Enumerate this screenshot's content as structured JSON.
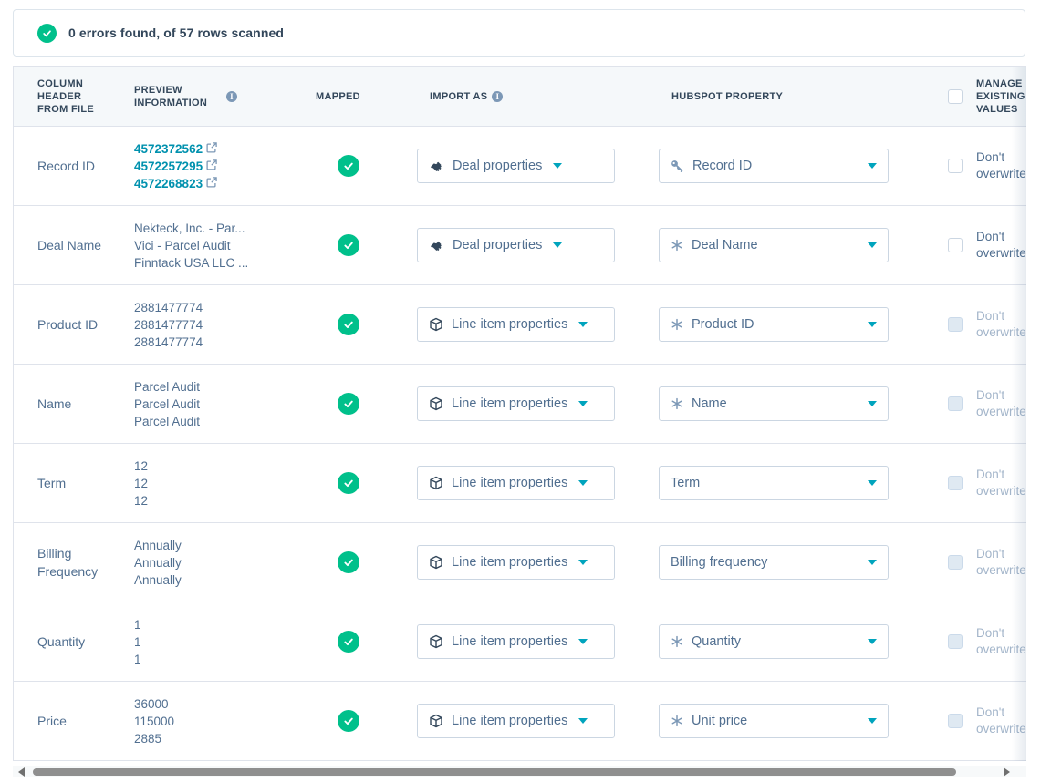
{
  "banner": {
    "text": "0 errors found, of 57 rows scanned"
  },
  "colors": {
    "success_green": "#00c08b",
    "accent_teal": "#00a4bd",
    "link_teal": "#0091ae",
    "header_bg": "#f5f8fa",
    "row_border": "#dfe3eb",
    "control_border": "#cbd6e2",
    "text_dark": "#33475b",
    "text_medium": "#516f90",
    "text_disabled": "#a3b5ca"
  },
  "icons": {
    "success-check-icon": "check in green circle",
    "info-icon": "i",
    "handshake-icon": "handshake",
    "cube-icon": "package cube",
    "key-icon": "key",
    "asterisk-icon": "asterisk",
    "external-link-icon": "arrow out of box",
    "chevron-down-icon": "caret down",
    "scroll-left-icon": "left triangle",
    "scroll-right-icon": "right triangle"
  },
  "table": {
    "headers": {
      "column_header": "COLUMN HEADER FROM FILE",
      "preview": "PREVIEW INFORMATION",
      "mapped": "MAPPED",
      "import_as": "IMPORT AS",
      "hubspot_property": "HUBSPOT PROPERTY",
      "manage_existing": "MANAGE EXISTING VALUES"
    },
    "dont_overwrite_label": "Don't overwrite",
    "rows": [
      {
        "column_header": "Record ID",
        "preview": [
          "4572372562",
          "4572257295",
          "4572268823"
        ],
        "preview_links": true,
        "mapped": true,
        "import_as": "Deal properties",
        "import_icon": "handshake-icon",
        "property": "Record ID",
        "property_icon": "key-icon",
        "overwrite_disabled": false
      },
      {
        "column_header": "Deal Name",
        "preview": [
          "Nekteck, Inc. - Par...",
          "Vici - Parcel Audit",
          "Finntack USA LLC ..."
        ],
        "preview_links": false,
        "mapped": true,
        "import_as": "Deal properties",
        "import_icon": "handshake-icon",
        "property": "Deal Name",
        "property_icon": "asterisk-icon",
        "overwrite_disabled": false
      },
      {
        "column_header": "Product ID",
        "preview": [
          "2881477774",
          "2881477774",
          "2881477774"
        ],
        "preview_links": false,
        "mapped": true,
        "import_as": "Line item properties",
        "import_icon": "cube-icon",
        "property": "Product ID",
        "property_icon": "asterisk-icon",
        "overwrite_disabled": true
      },
      {
        "column_header": "Name",
        "preview": [
          "Parcel Audit",
          "Parcel Audit",
          "Parcel Audit"
        ],
        "preview_links": false,
        "mapped": true,
        "import_as": "Line item properties",
        "import_icon": "cube-icon",
        "property": "Name",
        "property_icon": "asterisk-icon",
        "overwrite_disabled": true
      },
      {
        "column_header": "Term",
        "preview": [
          "12",
          "12",
          "12"
        ],
        "preview_links": false,
        "mapped": true,
        "import_as": "Line item properties",
        "import_icon": "cube-icon",
        "property": "Term",
        "property_icon": "",
        "overwrite_disabled": true
      },
      {
        "column_header": "Billing Frequency",
        "preview": [
          "Annually",
          "Annually",
          "Annually"
        ],
        "preview_links": false,
        "mapped": true,
        "import_as": "Line item properties",
        "import_icon": "cube-icon",
        "property": "Billing frequency",
        "property_icon": "",
        "overwrite_disabled": true
      },
      {
        "column_header": "Quantity",
        "preview": [
          "1",
          "1",
          "1"
        ],
        "preview_links": false,
        "mapped": true,
        "import_as": "Line item properties",
        "import_icon": "cube-icon",
        "property": "Quantity",
        "property_icon": "asterisk-icon",
        "overwrite_disabled": true
      },
      {
        "column_header": "Price",
        "preview": [
          "36000",
          "115000",
          "2885"
        ],
        "preview_links": false,
        "mapped": true,
        "import_as": "Line item properties",
        "import_icon": "cube-icon",
        "property": "Unit price",
        "property_icon": "asterisk-icon",
        "overwrite_disabled": true
      }
    ]
  }
}
